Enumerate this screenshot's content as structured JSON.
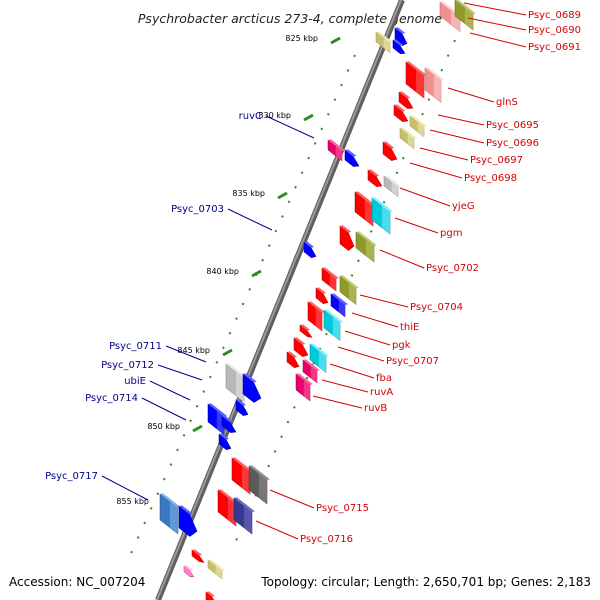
{
  "title": "Psychrobacter arcticus 273-4, complete genome",
  "accession": "Accession: NC_007204",
  "topology": "Topology: circular; Length: 2,650,701 bp; Genes: 2,183",
  "colors": {
    "backbone": "#808080",
    "tick": "#2e8b22",
    "label_red": "#d40000",
    "label_blue": "#00008b"
  },
  "kbp_ticks": [
    "825 kbp",
    "830 kbp",
    "835 kbp",
    "840 kbp",
    "845 kbp",
    "850 kbp",
    "855 kbp"
  ],
  "right_labels": [
    "Psyc_0689",
    "Psyc_0690",
    "Psyc_0691",
    "glnS",
    "Psyc_0695",
    "Psyc_0696",
    "Psyc_0697",
    "Psyc_0698",
    "yjeG",
    "pgm",
    "Psyc_0702",
    "Psyc_0704",
    "thiE",
    "pgk",
    "Psyc_0707",
    "fba",
    "ruvA",
    "ruvB",
    "Psyc_0715",
    "Psyc_0716"
  ],
  "left_labels": [
    "ruvC",
    "Psyc_0703",
    "Psyc_0711",
    "Psyc_0712",
    "ubiE",
    "Psyc_0714",
    "Psyc_0717"
  ]
}
